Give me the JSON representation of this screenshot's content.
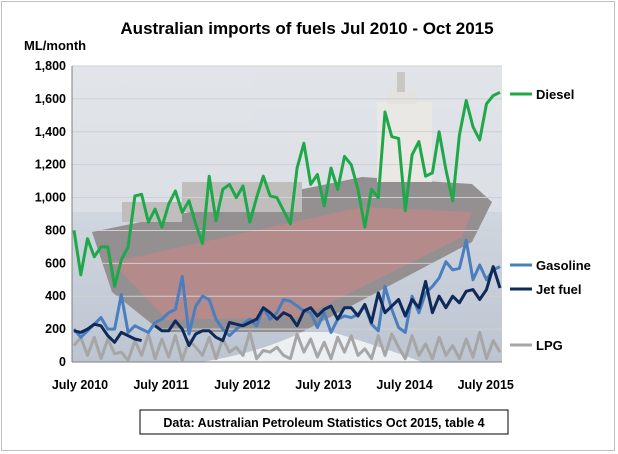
{
  "chart_data": {
    "type": "line",
    "title": "Australian imports of fuels Jul 2010 - Oct 2015",
    "ylabel": "ML/month",
    "xlabel": "",
    "ylim": [
      0,
      1800
    ],
    "yticks": [
      "0",
      "200",
      "400",
      "600",
      "800",
      "1,000",
      "1,200",
      "1,400",
      "1,600",
      "1,800"
    ],
    "ytick_values": [
      0,
      200,
      400,
      600,
      800,
      1000,
      1200,
      1400,
      1600,
      1800
    ],
    "xtick_labels": [
      "July 2010",
      "July 2011",
      "July 2012",
      "July 2013",
      "July 2014",
      "July 2015"
    ],
    "xtick_index": [
      0,
      12,
      24,
      36,
      48,
      60
    ],
    "x_start": "2010-07",
    "n_points": 64,
    "grid": true,
    "legend": "right",
    "source": "Data: Australian Petroleum Statistics Oct 2015, table 4",
    "series": [
      {
        "name": "Diesel",
        "color": "#1fa84a",
        "width": 3,
        "values": [
          800,
          530,
          750,
          640,
          700,
          700,
          460,
          620,
          700,
          1010,
          1020,
          850,
          930,
          820,
          960,
          1040,
          910,
          980,
          840,
          720,
          1130,
          860,
          1050,
          1080,
          1000,
          1070,
          850,
          1000,
          1130,
          1010,
          1000,
          920,
          840,
          1180,
          1330,
          1080,
          1140,
          950,
          1180,
          1050,
          1250,
          1200,
          1050,
          820,
          1050,
          1000,
          1520,
          1370,
          1360,
          920,
          1260,
          1340,
          1130,
          1150,
          1400,
          1170,
          980,
          1380,
          1590,
          1430,
          1350,
          1570,
          1620,
          1640
        ]
      },
      {
        "name": "Gasoline",
        "color": "#4a7ebf",
        "width": 3,
        "values": [
          200,
          150,
          190,
          230,
          270,
          200,
          200,
          410,
          180,
          220,
          200,
          180,
          240,
          260,
          300,
          320,
          520,
          170,
          340,
          400,
          380,
          260,
          200,
          160,
          200,
          230,
          260,
          220,
          330,
          260,
          300,
          380,
          370,
          340,
          310,
          300,
          210,
          300,
          180,
          260,
          280,
          270,
          290,
          340,
          230,
          190,
          460,
          320,
          210,
          180,
          400,
          300,
          420,
          460,
          510,
          610,
          560,
          570,
          740,
          500,
          590,
          500,
          560,
          580
        ]
      },
      {
        "name": "Jet fuel",
        "color": "#0f2a5a",
        "width": 3,
        "values": [
          190,
          180,
          200,
          230,
          220,
          160,
          120,
          180,
          160,
          140,
          130,
          null,
          220,
          190,
          190,
          250,
          200,
          100,
          170,
          190,
          190,
          150,
          130,
          240,
          230,
          220,
          240,
          260,
          330,
          300,
          260,
          300,
          280,
          220,
          310,
          330,
          280,
          320,
          340,
          260,
          330,
          330,
          280,
          350,
          240,
          420,
          300,
          340,
          380,
          280,
          380,
          330,
          490,
          300,
          400,
          330,
          400,
          360,
          430,
          440,
          380,
          440,
          580,
          450
        ]
      },
      {
        "name": "LPG",
        "color": "#a6a6a6",
        "width": 3,
        "values": [
          100,
          150,
          40,
          150,
          20,
          140,
          50,
          60,
          10,
          130,
          40,
          170,
          20,
          140,
          30,
          160,
          10,
          130,
          90,
          40,
          150,
          20,
          140,
          60,
          90,
          40,
          180,
          20,
          70,
          60,
          90,
          40,
          20,
          170,
          60,
          140,
          30,
          120,
          20,
          150,
          60,
          160,
          40,
          80,
          20,
          160,
          40,
          170,
          90,
          20,
          160,
          40,
          110,
          20,
          150,
          40,
          100,
          20,
          140,
          30,
          180,
          20,
          130,
          60
        ]
      }
    ]
  }
}
